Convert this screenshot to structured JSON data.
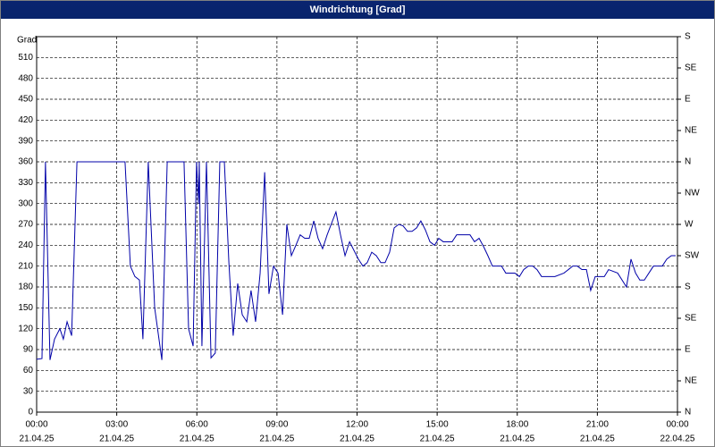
{
  "chart_data": {
    "type": "line",
    "title": "Windrichtung [Grad]",
    "ylabel": "Grad",
    "xlim": [
      0,
      24
    ],
    "xticks": [
      {
        "value": 0,
        "label": "00:00"
      },
      {
        "value": 3,
        "label": "03:00"
      },
      {
        "value": 6,
        "label": "06:00"
      },
      {
        "value": 9,
        "label": "09:00"
      },
      {
        "value": 12,
        "label": "12:00"
      },
      {
        "value": 15,
        "label": "15:00"
      },
      {
        "value": 18,
        "label": "18:00"
      },
      {
        "value": 21,
        "label": "21:00"
      },
      {
        "value": 24,
        "label": "00:00"
      }
    ],
    "xtick_dates": [
      "21.04.25",
      "21.04.25",
      "21.04.25",
      "21.04.25",
      "21.04.25",
      "21.04.25",
      "21.04.25",
      "21.04.25",
      "22.04.25"
    ],
    "ylim": [
      0,
      540
    ],
    "yticks": [
      0,
      30,
      60,
      90,
      120,
      150,
      180,
      210,
      240,
      270,
      300,
      330,
      360,
      390,
      420,
      450,
      480,
      510
    ],
    "y2lim": [
      0,
      540
    ],
    "y2ticks": [
      {
        "value": 0,
        "label": "N"
      },
      {
        "value": 45,
        "label": "NE"
      },
      {
        "value": 90,
        "label": "E"
      },
      {
        "value": 135,
        "label": "SE"
      },
      {
        "value": 180,
        "label": "S"
      },
      {
        "value": 225,
        "label": "SW"
      },
      {
        "value": 270,
        "label": "W"
      },
      {
        "value": 315,
        "label": "NW"
      },
      {
        "value": 360,
        "label": "N"
      },
      {
        "value": 405,
        "label": "NE"
      },
      {
        "value": 450,
        "label": "E"
      },
      {
        "value": 495,
        "label": "SE"
      },
      {
        "value": 540,
        "label": "S"
      }
    ],
    "grid": true,
    "x": [
      0,
      0.2,
      0.33,
      0.5,
      0.67,
      0.87,
      1.0,
      1.14,
      1.31,
      1.51,
      3.31,
      3.51,
      3.68,
      3.85,
      3.98,
      4.18,
      4.42,
      4.69,
      4.89,
      5.52,
      5.69,
      5.86,
      5.99,
      6.06,
      6.09,
      6.19,
      6.36,
      6.53,
      6.69,
      6.86,
      7.03,
      7.2,
      7.36,
      7.53,
      7.7,
      7.87,
      8.03,
      8.2,
      8.37,
      8.54,
      8.7,
      8.87,
      9.04,
      9.21,
      9.37,
      9.54,
      9.71,
      9.87,
      10.04,
      10.21,
      10.38,
      10.54,
      10.71,
      10.88,
      11.21,
      11.38,
      11.55,
      11.72,
      12.05,
      12.22,
      12.38,
      12.55,
      12.72,
      12.89,
      13.05,
      13.22,
      13.39,
      13.56,
      13.72,
      13.89,
      14.06,
      14.23,
      14.39,
      14.56,
      14.73,
      14.9,
      15.06,
      15.23,
      15.56,
      15.73,
      15.9,
      16.23,
      16.4,
      16.57,
      16.74,
      16.9,
      17.07,
      17.24,
      17.41,
      17.57,
      17.74,
      17.91,
      18.08,
      18.24,
      18.41,
      18.58,
      18.74,
      18.91,
      19.25,
      19.41,
      19.75,
      20.08,
      20.25,
      20.42,
      20.59,
      20.75,
      20.92,
      21.09,
      21.26,
      21.42,
      21.76,
      22.09,
      22.26,
      22.43,
      22.59,
      22.76,
      22.93,
      23.1,
      23.43,
      23.6,
      23.77,
      23.93
    ],
    "series": [
      {
        "color": "#0000a8",
        "values": [
          76,
          77,
          360,
          75,
          105,
          120,
          105,
          130,
          110,
          360,
          360,
          210,
          195,
          190,
          105,
          360,
          150,
          75,
          360,
          360,
          120,
          95,
          360,
          300,
          360,
          95,
          360,
          78,
          85,
          360,
          360,
          215,
          110,
          185,
          140,
          130,
          175,
          130,
          200,
          345,
          170,
          210,
          200,
          140,
          270,
          225,
          240,
          255,
          250,
          250,
          275,
          250,
          235,
          255,
          288,
          255,
          225,
          245,
          220,
          210,
          215,
          230,
          225,
          215,
          215,
          230,
          265,
          270,
          268,
          260,
          260,
          265,
          275,
          262,
          245,
          240,
          250,
          245,
          245,
          255,
          255,
          255,
          245,
          250,
          238,
          225,
          210,
          210,
          210,
          200,
          200,
          200,
          195,
          205,
          210,
          210,
          205,
          195,
          195,
          195,
          200,
          210,
          210,
          205,
          205,
          175,
          195,
          195,
          195,
          205,
          200,
          180,
          220,
          200,
          190,
          190,
          200,
          210,
          210,
          220,
          225,
          225
        ]
      }
    ]
  }
}
